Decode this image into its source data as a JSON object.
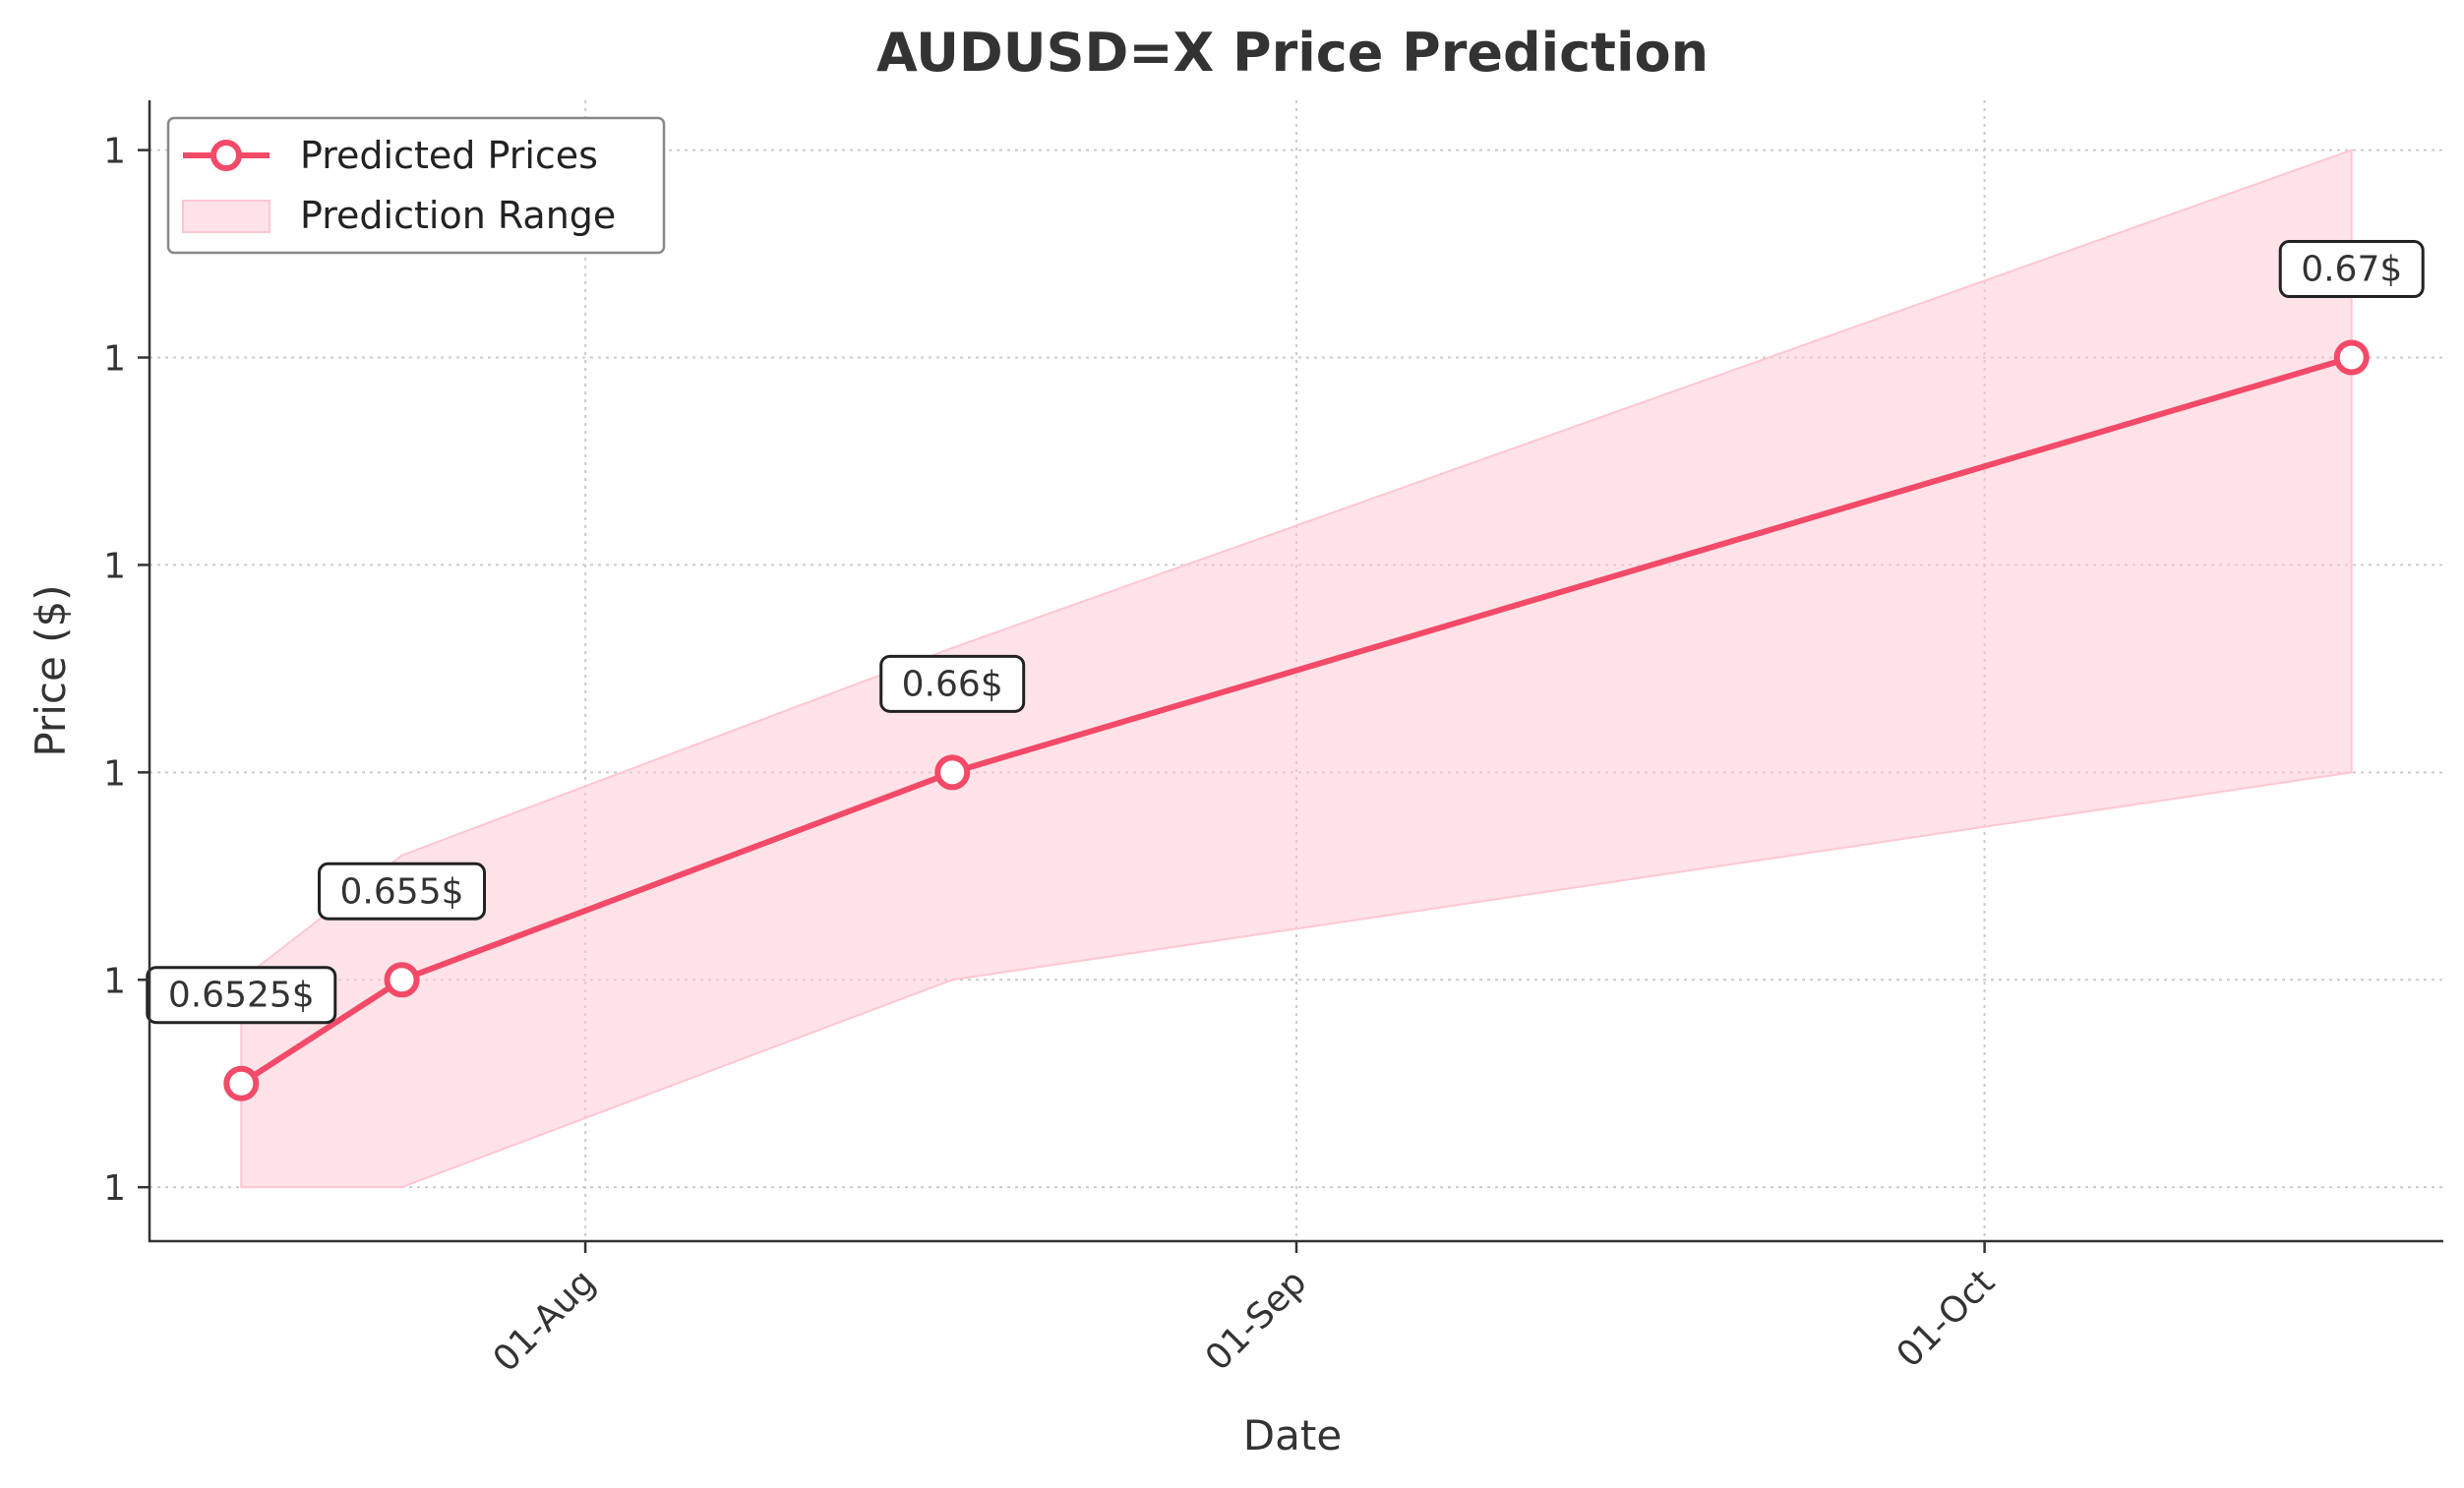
{
  "chart_data": {
    "type": "line",
    "title": "AUDUSD=X Price Prediction",
    "xlabel": "Date",
    "ylabel": "Price ($)",
    "x_ticks": [
      {
        "date": "2024-08-01",
        "label": "01-Aug"
      },
      {
        "date": "2024-09-01",
        "label": "01-Sep"
      },
      {
        "date": "2024-10-01",
        "label": "01-Oct"
      }
    ],
    "y_ticks": [
      {
        "value": 0.65,
        "label": "1"
      },
      {
        "value": 0.655,
        "label": "1"
      },
      {
        "value": 0.66,
        "label": "1"
      },
      {
        "value": 0.665,
        "label": "1"
      },
      {
        "value": 0.67,
        "label": "1"
      },
      {
        "value": 0.675,
        "label": "1"
      }
    ],
    "xlim": [
      "2024-07-13",
      "2024-10-21"
    ],
    "ylim": [
      0.6487,
      0.6762
    ],
    "grid": true,
    "legend_position": "top-left",
    "series": [
      {
        "name": "Predicted Prices",
        "color": "#f24a68",
        "marker": "circle",
        "points": [
          {
            "x": "2024-07-17",
            "y": 0.6525,
            "label": "0.6525$"
          },
          {
            "x": "2024-07-24",
            "y": 0.655,
            "label": "0.655$"
          },
          {
            "x": "2024-08-17",
            "y": 0.66,
            "label": "0.66$"
          },
          {
            "x": "2024-10-17",
            "y": 0.67,
            "label": "0.67$"
          }
        ]
      }
    ],
    "band": {
      "name": "Prediction Range",
      "color": "#ffc7d2",
      "points": [
        {
          "x": "2024-07-17",
          "lower": 0.65,
          "upper": 0.655
        },
        {
          "x": "2024-07-24",
          "lower": 0.65,
          "upper": 0.658
        },
        {
          "x": "2024-08-17",
          "lower": 0.655,
          "upper": 0.663
        },
        {
          "x": "2024-10-17",
          "lower": 0.66,
          "upper": 0.675
        }
      ]
    }
  }
}
